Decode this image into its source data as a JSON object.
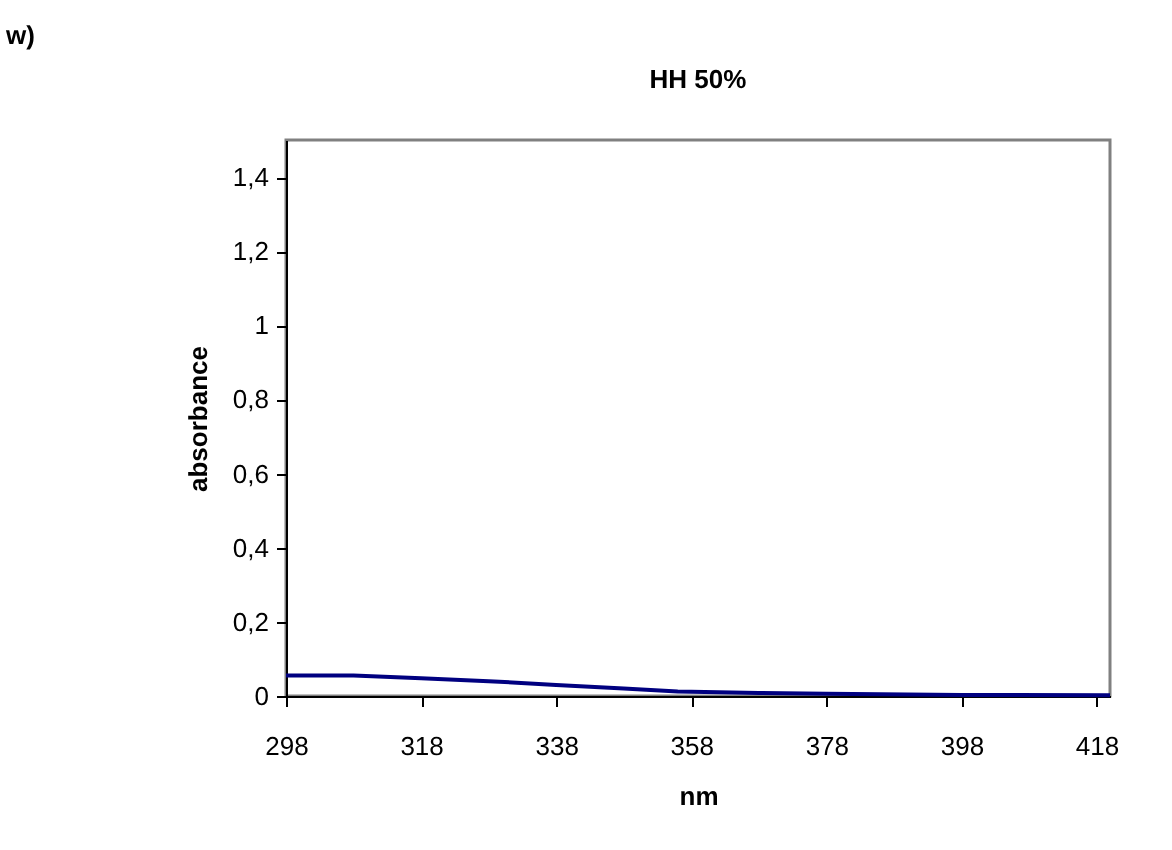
{
  "chart_data": {
    "type": "line",
    "title": "HH 50%",
    "xlabel": "nm",
    "ylabel": "absorbance",
    "annotations": [
      "w)"
    ],
    "x": [
      298,
      308,
      318,
      328,
      338,
      348,
      356,
      368,
      378,
      398,
      420
    ],
    "series": [
      {
        "color": "#000080",
        "values": [
          0.055,
          0.055,
          0.048,
          0.04,
          0.03,
          0.02,
          0.012,
          0.008,
          0.006,
          0.003,
          0.002
        ]
      }
    ],
    "xlim": [
      298,
      420
    ],
    "xticks": [
      298,
      318,
      338,
      358,
      378,
      398,
      418
    ],
    "ylim": [
      0,
      1.5
    ],
    "yticks": [
      0,
      {
        "value": 0.2,
        "label": "0,2"
      },
      {
        "value": 0.4,
        "label": "0,4"
      },
      {
        "value": 0.6,
        "label": "0,6"
      },
      {
        "value": 0.8,
        "label": "0,8"
      },
      1,
      {
        "value": 1.2,
        "label": "1,2"
      },
      {
        "value": 1.4,
        "label": "1,4"
      }
    ],
    "grid": false,
    "legend": false,
    "marker": "none",
    "line_style": "solid"
  }
}
